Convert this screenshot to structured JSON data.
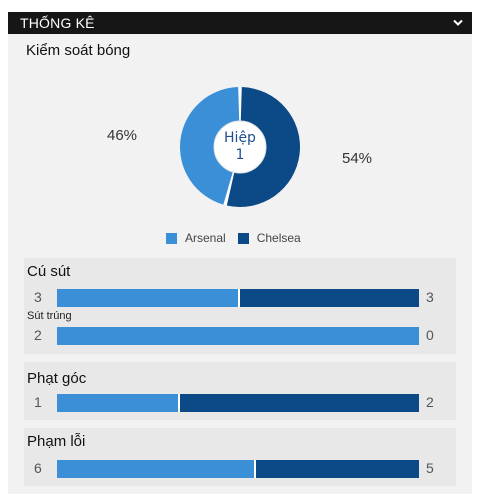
{
  "header": {
    "title": "THỐNG KÊ"
  },
  "possession": {
    "title": "Kiểm soát bóng",
    "home_pct": 46,
    "away_pct": 54,
    "home_label": "46%",
    "away_label": "54%",
    "center_line1": "Hiệp",
    "center_line2": "1"
  },
  "legend": {
    "home": "Arsenal",
    "away": "Chelsea"
  },
  "colors": {
    "home": "#3a8fd6",
    "away": "#0b4a86"
  },
  "stats": {
    "shots": {
      "title": "Cú sút",
      "total": {
        "home": "3",
        "away": "3"
      },
      "on_target_label": "Sút trúng",
      "on_target": {
        "home": "2",
        "away": "0"
      }
    },
    "corners": {
      "title": "Phạt góc",
      "home": "1",
      "away": "2"
    },
    "fouls": {
      "title": "Phạm lỗi",
      "home": "6",
      "away": "5"
    }
  }
}
